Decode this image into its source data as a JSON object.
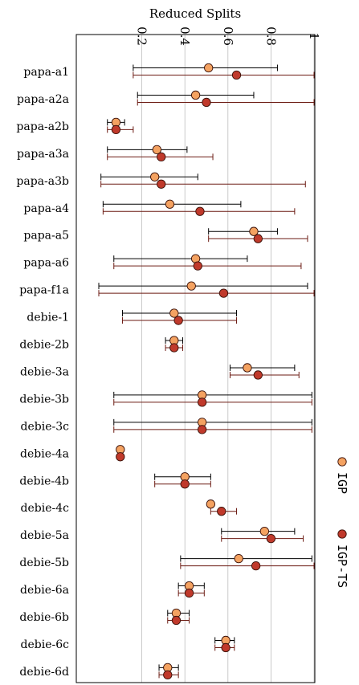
{
  "chart_data": {
    "type": "scatter",
    "orientation": "horizontal-errorbars",
    "xlabel": "Reduced Splits",
    "xlim": [
      0,
      1
    ],
    "xticks": [
      {
        "value": 0.2,
        "label": "0.2"
      },
      {
        "value": 0.4,
        "label": "0.4"
      },
      {
        "value": 0.6,
        "label": "0.6"
      },
      {
        "value": 0.8,
        "label": "0.8"
      },
      {
        "value": 1.0,
        "label": "1"
      }
    ],
    "grid": true,
    "legend_placement": "right",
    "categories": [
      "papa-a1",
      "papa-a2a",
      "papa-a2b",
      "papa-a3a",
      "papa-a3b",
      "papa-a4",
      "papa-a5",
      "papa-a6",
      "papa-f1a",
      "debie-1",
      "debie-2b",
      "debie-3a",
      "debie-3b",
      "debie-3c",
      "debie-4a",
      "debie-4b",
      "debie-4c",
      "debie-5a",
      "debie-5b",
      "debie-6a",
      "debie-6b",
      "debie-6c",
      "debie-6d"
    ],
    "series": [
      {
        "name": "IGP",
        "color": "#f4a261",
        "points": [
          {
            "mean": 0.51,
            "lo": 0.16,
            "hi": 0.83
          },
          {
            "mean": 0.45,
            "lo": 0.18,
            "hi": 0.72
          },
          {
            "mean": 0.08,
            "lo": 0.04,
            "hi": 0.12
          },
          {
            "mean": 0.27,
            "lo": 0.04,
            "hi": 0.41
          },
          {
            "mean": 0.26,
            "lo": 0.01,
            "hi": 0.46
          },
          {
            "mean": 0.33,
            "lo": 0.02,
            "hi": 0.66
          },
          {
            "mean": 0.72,
            "lo": 0.51,
            "hi": 0.83
          },
          {
            "mean": 0.45,
            "lo": 0.07,
            "hi": 0.69
          },
          {
            "mean": 0.43,
            "lo": 0.0,
            "hi": 0.97
          },
          {
            "mean": 0.35,
            "lo": 0.11,
            "hi": 0.64
          },
          {
            "mean": 0.35,
            "lo": 0.31,
            "hi": 0.39
          },
          {
            "mean": 0.69,
            "lo": 0.61,
            "hi": 0.91
          },
          {
            "mean": 0.48,
            "lo": 0.07,
            "hi": 0.99
          },
          {
            "mean": 0.48,
            "lo": 0.07,
            "hi": 0.99
          },
          {
            "mean": 0.1,
            "lo": 0.1,
            "hi": 0.1
          },
          {
            "mean": 0.4,
            "lo": 0.26,
            "hi": 0.52
          },
          {
            "mean": 0.52,
            "lo": 0.52,
            "hi": 0.52
          },
          {
            "mean": 0.77,
            "lo": 0.57,
            "hi": 0.91
          },
          {
            "mean": 0.65,
            "lo": 0.38,
            "hi": 0.99
          },
          {
            "mean": 0.42,
            "lo": 0.37,
            "hi": 0.49
          },
          {
            "mean": 0.36,
            "lo": 0.32,
            "hi": 0.42
          },
          {
            "mean": 0.59,
            "lo": 0.54,
            "hi": 0.63
          },
          {
            "mean": 0.32,
            "lo": 0.28,
            "hi": 0.37
          }
        ]
      },
      {
        "name": "IGP-TS",
        "color": "#c0392b",
        "points": [
          {
            "mean": 0.64,
            "lo": 0.16,
            "hi": 1.0
          },
          {
            "mean": 0.5,
            "lo": 0.18,
            "hi": 1.0
          },
          {
            "mean": 0.08,
            "lo": 0.04,
            "hi": 0.16
          },
          {
            "mean": 0.29,
            "lo": 0.04,
            "hi": 0.53
          },
          {
            "mean": 0.29,
            "lo": 0.01,
            "hi": 0.96
          },
          {
            "mean": 0.47,
            "lo": 0.02,
            "hi": 0.91
          },
          {
            "mean": 0.74,
            "lo": 0.51,
            "hi": 0.97
          },
          {
            "mean": 0.46,
            "lo": 0.07,
            "hi": 0.94
          },
          {
            "mean": 0.58,
            "lo": 0.0,
            "hi": 1.0
          },
          {
            "mean": 0.37,
            "lo": 0.11,
            "hi": 0.64
          },
          {
            "mean": 0.35,
            "lo": 0.31,
            "hi": 0.39
          },
          {
            "mean": 0.74,
            "lo": 0.61,
            "hi": 0.93
          },
          {
            "mean": 0.48,
            "lo": 0.07,
            "hi": 0.99
          },
          {
            "mean": 0.48,
            "lo": 0.07,
            "hi": 0.99
          },
          {
            "mean": 0.1,
            "lo": 0.1,
            "hi": 0.1
          },
          {
            "mean": 0.4,
            "lo": 0.26,
            "hi": 0.52
          },
          {
            "mean": 0.57,
            "lo": 0.52,
            "hi": 0.64
          },
          {
            "mean": 0.8,
            "lo": 0.57,
            "hi": 0.95
          },
          {
            "mean": 0.73,
            "lo": 0.38,
            "hi": 1.0
          },
          {
            "mean": 0.42,
            "lo": 0.37,
            "hi": 0.49
          },
          {
            "mean": 0.36,
            "lo": 0.32,
            "hi": 0.42
          },
          {
            "mean": 0.59,
            "lo": 0.54,
            "hi": 0.63
          },
          {
            "mean": 0.32,
            "lo": 0.28,
            "hi": 0.37
          }
        ]
      }
    ]
  }
}
